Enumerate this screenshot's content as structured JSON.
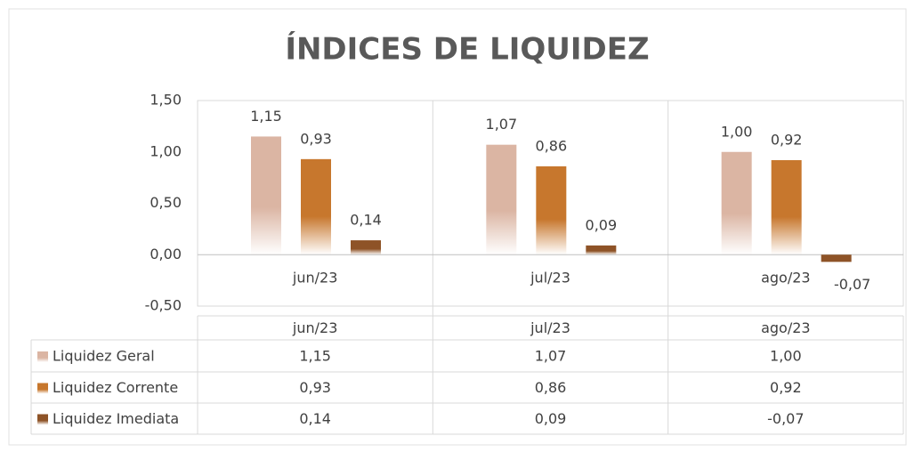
{
  "chart_data": {
    "type": "bar",
    "title": "ÍNDICES DE LIQUIDEZ",
    "categories": [
      "jun/23",
      "jul/23",
      "ago/23"
    ],
    "series": [
      {
        "name": "Liquidez Geral",
        "color": "#dbb5a3",
        "values": [
          1.15,
          1.07,
          1.0
        ],
        "value_labels": [
          "1,15",
          "1,07",
          "1,00"
        ]
      },
      {
        "name": "Liquidez Corrente",
        "color": "#c7772d",
        "values": [
          0.93,
          0.86,
          0.92
        ],
        "value_labels": [
          "0,93",
          "0,86",
          "0,92"
        ]
      },
      {
        "name": "Liquidez Imediata",
        "color": "#8e5327",
        "values": [
          0.14,
          0.09,
          -0.07
        ],
        "value_labels": [
          "0,14",
          "0,09",
          "-0,07"
        ]
      }
    ],
    "ylim": [
      -0.5,
      1.5
    ],
    "yticks": [
      {
        "value": -0.5,
        "label": "-0,50"
      },
      {
        "value": 0,
        "label": "0,00"
      },
      {
        "value": 0.5,
        "label": "0,50"
      },
      {
        "value": 1,
        "label": "1,00"
      },
      {
        "value": 1.5,
        "label": "1,50"
      }
    ],
    "grid": false,
    "data_table": true
  }
}
